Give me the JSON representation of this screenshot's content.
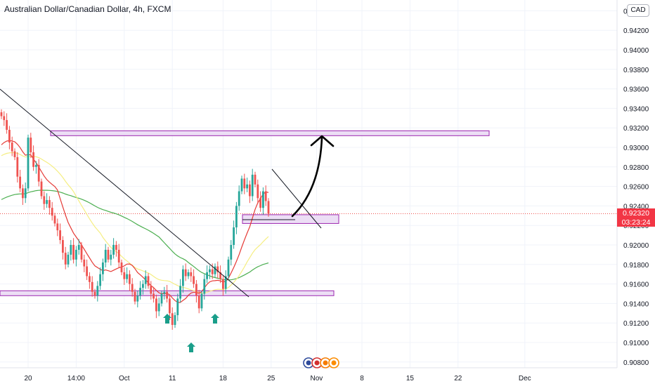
{
  "header": {
    "title": "Australian Dollar/Canadian Dollar, 4h, FXCM",
    "currency_badge": "CAD"
  },
  "last_price": {
    "value": "0.92320",
    "countdown": "03:23:24",
    "color": "#f23645"
  },
  "colors": {
    "up": "#26a69a",
    "down": "#ef5350",
    "zone_fill": "#e9d8f3",
    "zone_stroke": "#9c27b0",
    "ma_fast": "#e53935",
    "ma_mid": "#f5ee82",
    "ma_slow": "#4caf50",
    "arrow": "#1a9e8a"
  },
  "chart_data": {
    "type": "candlestick",
    "title": "Australian Dollar/Canadian Dollar, 4h, FXCM",
    "y_axis": {
      "ticks": [
        0.908,
        0.91,
        0.912,
        0.914,
        0.916,
        0.918,
        0.92,
        0.922,
        0.924,
        0.926,
        0.928,
        0.93,
        0.932,
        0.934,
        0.936,
        0.938,
        0.94,
        0.942,
        0.944
      ],
      "tick_labels": [
        "0.90800",
        "0.91000",
        "0.91200",
        "0.91400",
        "0.91600",
        "0.91800",
        "0.92000",
        "0.92200",
        "0.92400",
        "0.92600",
        "0.92800",
        "0.93000",
        "0.93200",
        "0.93400",
        "0.93600",
        "0.93800",
        "0.94000",
        "0.94200",
        "0.94400"
      ],
      "range": [
        0.9068,
        0.9457
      ]
    },
    "x_axis": {
      "tick_labels": [
        "20",
        "14:00",
        "Oct",
        "11",
        "18",
        "25",
        "Nov",
        "8",
        "15",
        "22",
        "Dec"
      ],
      "tick_index": [
        10,
        28,
        46,
        64,
        83,
        101,
        118,
        135,
        153,
        171,
        196
      ]
    },
    "candles_close": [
      0.9332,
      0.9328,
      0.9318,
      0.9305,
      0.9296,
      0.929,
      0.927,
      0.9258,
      0.9248,
      0.9258,
      0.931,
      0.9295,
      0.928,
      0.9282,
      0.9265,
      0.925,
      0.9242,
      0.9246,
      0.9238,
      0.923,
      0.9222,
      0.9215,
      0.9205,
      0.9192,
      0.918,
      0.919,
      0.92,
      0.9185,
      0.9195,
      0.92,
      0.9185,
      0.9178,
      0.9168,
      0.9162,
      0.9152,
      0.9148,
      0.9158,
      0.917,
      0.9182,
      0.9195,
      0.9185,
      0.919,
      0.92,
      0.9195,
      0.9182,
      0.9172,
      0.9165,
      0.917,
      0.916,
      0.9152,
      0.9142,
      0.9148,
      0.9156,
      0.916,
      0.9168,
      0.9158,
      0.915,
      0.9145,
      0.9132,
      0.914,
      0.915,
      0.9152,
      0.9145,
      0.913,
      0.9118,
      0.9128,
      0.9145,
      0.9158,
      0.9175,
      0.9168,
      0.9172,
      0.9168,
      0.916,
      0.9148,
      0.9135,
      0.915,
      0.9165,
      0.9172,
      0.9175,
      0.917,
      0.9178,
      0.9172,
      0.9165,
      0.9155,
      0.9168,
      0.9185,
      0.92,
      0.9218,
      0.924,
      0.9255,
      0.9268,
      0.9258,
      0.9262,
      0.925,
      0.9272,
      0.9262,
      0.9248,
      0.9238,
      0.9255,
      0.9245,
      0.9232
    ],
    "support_zone": [
      0.9148,
      0.9153
    ],
    "resistance_zone": [
      0.9312,
      0.9317
    ],
    "demand_zone": [
      0.9222,
      0.9231
    ],
    "moving_averages": [
      "ma_fast",
      "ma_mid",
      "ma_slow"
    ],
    "annotations": [
      "descending trendline",
      "falling wedge line",
      "projected up arrow",
      "triple-bottom arrows"
    ],
    "grid": true
  }
}
